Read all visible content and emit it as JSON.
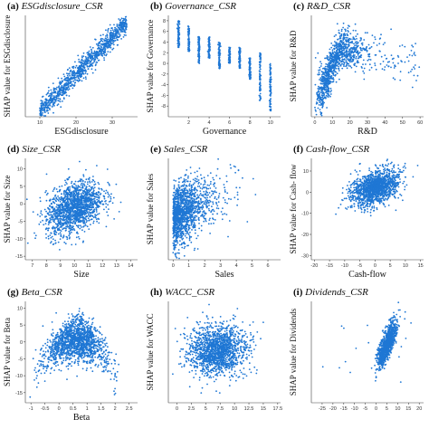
{
  "point_color": "#1f77d4",
  "chart_data": [
    {
      "type": "scatter",
      "panel_letter": "(a)",
      "panel_name": "ESGdisclosure_CSR",
      "xlabel": "ESGdisclosure",
      "ylabel": "SHAP value for ESGdisclosure",
      "xlim": [
        6,
        37
      ],
      "ylim": [
        -13,
        12
      ],
      "xticks": [
        10,
        20,
        30
      ],
      "yticks": [],
      "pattern": {
        "kind": "linear",
        "slope": 0.92,
        "intercept": -21,
        "noise": 1.3,
        "x_min": 10,
        "x_max": 34,
        "n": 1100
      }
    },
    {
      "type": "scatter",
      "panel_letter": "(b)",
      "panel_name": "Governance_CSR",
      "xlabel": "Governance",
      "ylabel": "SHAP value for Governance",
      "xlim": [
        0,
        11
      ],
      "ylim": [
        -10,
        9
      ],
      "xticks": [
        2,
        4,
        6,
        8,
        10
      ],
      "yticks": [
        8,
        6,
        4,
        2,
        0,
        -2,
        -4,
        -6,
        -8
      ],
      "pattern": {
        "kind": "strips",
        "strips": [
          [
            1,
            3,
            8
          ],
          [
            2,
            2,
            7
          ],
          [
            3,
            0,
            5
          ],
          [
            4,
            1,
            5
          ],
          [
            5,
            -1,
            4
          ],
          [
            6,
            0,
            3
          ],
          [
            7,
            -1,
            3
          ],
          [
            8,
            -3,
            1
          ],
          [
            9,
            -7,
            2
          ],
          [
            10,
            -9,
            0
          ]
        ],
        "n": 900
      }
    },
    {
      "type": "scatter",
      "panel_letter": "(c)",
      "panel_name": "R&D_CSR",
      "xlabel": "R&D",
      "ylabel": "SHAP value for R&D",
      "xlim": [
        -2,
        62
      ],
      "ylim": [
        -8,
        17
      ],
      "xticks": [
        0,
        10,
        20,
        30,
        40,
        50,
        60
      ],
      "yticks": [],
      "pattern": {
        "kind": "rise_fall",
        "peak_x": 15,
        "peak_y": 9,
        "start_y": -5,
        "tail_y": 5,
        "x_min": 0,
        "x_max": 60,
        "noise": 3,
        "n": 1100
      }
    },
    {
      "type": "scatter",
      "panel_letter": "(d)",
      "panel_name": "Size_CSR",
      "xlabel": "Size",
      "ylabel": "SHAP value for Size",
      "xlim": [
        6.5,
        14.5
      ],
      "ylim": [
        -16,
        13
      ],
      "xticks": [
        7,
        8,
        9,
        10,
        11,
        12,
        13,
        14
      ],
      "yticks": [
        10,
        5,
        0,
        -5,
        -10,
        -15
      ],
      "pattern": {
        "kind": "cloud_trend",
        "cx": 10,
        "cy": -1,
        "sx": 1,
        "sy": 3.5,
        "slope": 1.5,
        "n": 1500
      }
    },
    {
      "type": "scatter",
      "panel_letter": "(e)",
      "panel_name": "Sales_CSR",
      "xlabel": "Sales",
      "ylabel": "SHAP value for Sales",
      "xlim": [
        -0.3,
        6.8
      ],
      "ylim": [
        -9,
        12
      ],
      "xticks": [
        0,
        1,
        2,
        3,
        4,
        5,
        6
      ],
      "yticks": [],
      "pattern": {
        "kind": "skew_cloud",
        "x0": 0,
        "scale": 1.2,
        "slope": 2,
        "y0": -1,
        "noise": 3,
        "n": 1400
      }
    },
    {
      "type": "scatter",
      "panel_letter": "(f)",
      "panel_name": "Cash-flow_CSR",
      "xlabel": "Cash-flow",
      "ylabel": "SHAP value for Cash- flow",
      "xlim": [
        -21,
        16
      ],
      "ylim": [
        -32,
        16
      ],
      "xticks": [
        -20,
        -15,
        -10,
        -5,
        0,
        5,
        10,
        15
      ],
      "yticks": [
        10,
        0,
        -10,
        -20,
        -30
      ],
      "pattern": {
        "kind": "cloud_trend",
        "cx": 0,
        "cy": 2,
        "sx": 4,
        "sy": 4,
        "slope": 0.4,
        "n": 1400
      }
    },
    {
      "type": "scatter",
      "panel_letter": "(g)",
      "panel_name": "Beta_CSR",
      "xlabel": "Beta",
      "ylabel": "SHAP value for Beta",
      "xlim": [
        -1.2,
        2.8
      ],
      "ylim": [
        -18,
        12
      ],
      "xticks": [
        -1,
        -0.5,
        0,
        0.5,
        1,
        1.5,
        2,
        2.5
      ],
      "yticks": [
        10,
        5,
        0,
        -5,
        -10,
        -15
      ],
      "pattern": {
        "kind": "arch",
        "cx": 0.6,
        "cy": 1,
        "sx": 0.55,
        "sy": 3,
        "curv": -5,
        "n": 1500
      }
    },
    {
      "type": "scatter",
      "panel_letter": "(h)",
      "panel_name": "WACC_CSR",
      "xlabel": "",
      "ylabel": "SHAP value for WACC",
      "xlim": [
        -1.5,
        18
      ],
      "ylim": [
        -16,
        13
      ],
      "xticks": [
        0,
        2.5,
        5,
        7.5,
        10,
        12.5,
        15,
        17.5
      ],
      "yticks": [],
      "pattern": {
        "kind": "cloud_trend",
        "cx": 7,
        "cy": -1,
        "sx": 2.5,
        "sy": 3.5,
        "slope": 0.1,
        "n": 1500
      }
    },
    {
      "type": "scatter",
      "panel_letter": "(i)",
      "panel_name": "Dividends_CSR",
      "xlabel": "",
      "ylabel": "SHAP value for Dividends",
      "xlim": [
        -30,
        22
      ],
      "ylim": [
        -25,
        10
      ],
      "xticks": [
        -25,
        -20,
        -15,
        -10,
        -5,
        0,
        5,
        10,
        15,
        20
      ],
      "yticks": [],
      "pattern": {
        "kind": "steep",
        "cx": 5,
        "cy": -5,
        "sx": 2.2,
        "slope": 1.4,
        "noise": 2.5,
        "outliers": 15,
        "n": 1000
      }
    }
  ]
}
